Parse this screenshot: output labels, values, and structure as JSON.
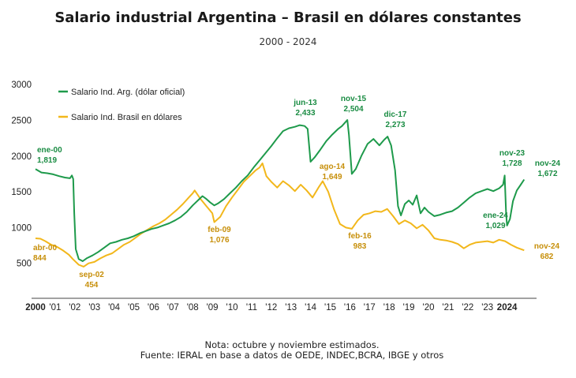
{
  "chart_data": {
    "type": "line",
    "title": "Salario industrial Argentina – Brasil en dólares constantes",
    "subtitle": "2000 - 2024",
    "xlabel": "",
    "ylabel": "",
    "ylim": [
      0,
      3000
    ],
    "yticks": [
      "3000",
      "2500",
      "2000",
      "1500",
      "1000",
      "500"
    ],
    "xticks": [
      {
        "label": "2000",
        "year": 2000,
        "bold": true
      },
      {
        "label": "'01",
        "year": 2001
      },
      {
        "label": "'02",
        "year": 2002
      },
      {
        "label": "'03",
        "year": 2003
      },
      {
        "label": "'04",
        "year": 2004
      },
      {
        "label": "'05",
        "year": 2005
      },
      {
        "label": "'06",
        "year": 2006
      },
      {
        "label": "'07",
        "year": 2007
      },
      {
        "label": "'08",
        "year": 2008
      },
      {
        "label": "'09",
        "year": 2009
      },
      {
        "label": "'10",
        "year": 2010
      },
      {
        "label": "'11",
        "year": 2011
      },
      {
        "label": "'12",
        "year": 2012
      },
      {
        "label": "'13",
        "year": 2013
      },
      {
        "label": "'14",
        "year": 2014
      },
      {
        "label": "'15",
        "year": 2015
      },
      {
        "label": "'16",
        "year": 2016
      },
      {
        "label": "'17",
        "year": 2017
      },
      {
        "label": "'18",
        "year": 2018
      },
      {
        "label": "'19",
        "year": 2019
      },
      {
        "label": "'20",
        "year": 2020
      },
      {
        "label": "'21",
        "year": 2021
      },
      {
        "label": "'22",
        "year": 2022
      },
      {
        "label": "'23",
        "year": 2023
      },
      {
        "label": "2024",
        "year": 2024,
        "bold": true
      }
    ],
    "grid": false,
    "legend_position": "top-left",
    "series": [
      {
        "name": "Salario Ind. Arg. (dólar oficial)",
        "color": "#1e9a4b",
        "points": [
          [
            2000.0,
            1819
          ],
          [
            2000.3,
            1770
          ],
          [
            2000.6,
            1760
          ],
          [
            2000.9,
            1745
          ],
          [
            2001.2,
            1720
          ],
          [
            2001.5,
            1700
          ],
          [
            2001.75,
            1690
          ],
          [
            2001.85,
            1730
          ],
          [
            2001.92,
            1680
          ],
          [
            2001.97,
            1200
          ],
          [
            2002.05,
            700
          ],
          [
            2002.2,
            560
          ],
          [
            2002.4,
            530
          ],
          [
            2002.6,
            570
          ],
          [
            2002.9,
            610
          ],
          [
            2003.2,
            660
          ],
          [
            2003.5,
            720
          ],
          [
            2003.8,
            780
          ],
          [
            2004.1,
            800
          ],
          [
            2004.4,
            830
          ],
          [
            2004.7,
            850
          ],
          [
            2005.0,
            880
          ],
          [
            2005.3,
            920
          ],
          [
            2005.6,
            950
          ],
          [
            2005.9,
            980
          ],
          [
            2006.2,
            1000
          ],
          [
            2006.5,
            1030
          ],
          [
            2006.8,
            1060
          ],
          [
            2007.1,
            1100
          ],
          [
            2007.4,
            1150
          ],
          [
            2007.7,
            1220
          ],
          [
            2008.0,
            1310
          ],
          [
            2008.3,
            1390
          ],
          [
            2008.5,
            1440
          ],
          [
            2008.7,
            1400
          ],
          [
            2008.9,
            1350
          ],
          [
            2009.1,
            1310
          ],
          [
            2009.3,
            1340
          ],
          [
            2009.6,
            1400
          ],
          [
            2009.9,
            1480
          ],
          [
            2010.2,
            1560
          ],
          [
            2010.5,
            1650
          ],
          [
            2010.8,
            1730
          ],
          [
            2011.1,
            1840
          ],
          [
            2011.4,
            1940
          ],
          [
            2011.7,
            2040
          ],
          [
            2012.0,
            2140
          ],
          [
            2012.3,
            2250
          ],
          [
            2012.6,
            2350
          ],
          [
            2012.9,
            2390
          ],
          [
            2013.2,
            2410
          ],
          [
            2013.45,
            2433
          ],
          [
            2013.7,
            2420
          ],
          [
            2013.85,
            2380
          ],
          [
            2014.0,
            1920
          ],
          [
            2014.2,
            1980
          ],
          [
            2014.5,
            2090
          ],
          [
            2014.8,
            2210
          ],
          [
            2015.1,
            2300
          ],
          [
            2015.4,
            2380
          ],
          [
            2015.6,
            2420
          ],
          [
            2015.87,
            2504
          ],
          [
            2015.95,
            2300
          ],
          [
            2016.1,
            1750
          ],
          [
            2016.3,
            1820
          ],
          [
            2016.6,
            2010
          ],
          [
            2016.9,
            2170
          ],
          [
            2017.2,
            2240
          ],
          [
            2017.5,
            2150
          ],
          [
            2017.75,
            2230
          ],
          [
            2017.92,
            2273
          ],
          [
            2018.1,
            2150
          ],
          [
            2018.3,
            1800
          ],
          [
            2018.45,
            1300
          ],
          [
            2018.6,
            1170
          ],
          [
            2018.8,
            1330
          ],
          [
            2019.0,
            1380
          ],
          [
            2019.2,
            1320
          ],
          [
            2019.4,
            1450
          ],
          [
            2019.6,
            1200
          ],
          [
            2019.8,
            1280
          ],
          [
            2020.0,
            1220
          ],
          [
            2020.3,
            1160
          ],
          [
            2020.6,
            1180
          ],
          [
            2020.9,
            1210
          ],
          [
            2021.2,
            1230
          ],
          [
            2021.5,
            1280
          ],
          [
            2021.8,
            1350
          ],
          [
            2022.1,
            1420
          ],
          [
            2022.4,
            1480
          ],
          [
            2022.7,
            1510
          ],
          [
            2023.0,
            1540
          ],
          [
            2023.3,
            1510
          ],
          [
            2023.6,
            1550
          ],
          [
            2023.8,
            1600
          ],
          [
            2023.88,
            1728
          ],
          [
            2023.95,
            1200
          ],
          [
            2024.0,
            1029
          ],
          [
            2024.15,
            1120
          ],
          [
            2024.3,
            1370
          ],
          [
            2024.5,
            1520
          ],
          [
            2024.7,
            1600
          ],
          [
            2024.87,
            1672
          ]
        ]
      },
      {
        "name": "Salario Ind. Brasil en dólares",
        "color": "#f2b71b",
        "points": [
          [
            2000.0,
            850
          ],
          [
            2000.25,
            844
          ],
          [
            2000.5,
            810
          ],
          [
            2000.8,
            760
          ],
          [
            2001.1,
            730
          ],
          [
            2001.4,
            680
          ],
          [
            2001.7,
            620
          ],
          [
            2001.9,
            560
          ],
          [
            2002.2,
            480
          ],
          [
            2002.45,
            454
          ],
          [
            2002.7,
            500
          ],
          [
            2003.0,
            520
          ],
          [
            2003.3,
            570
          ],
          [
            2003.6,
            610
          ],
          [
            2003.9,
            640
          ],
          [
            2004.2,
            700
          ],
          [
            2004.5,
            760
          ],
          [
            2004.8,
            800
          ],
          [
            2005.1,
            860
          ],
          [
            2005.4,
            920
          ],
          [
            2005.7,
            970
          ],
          [
            2006.0,
            1020
          ],
          [
            2006.3,
            1060
          ],
          [
            2006.6,
            1110
          ],
          [
            2006.9,
            1180
          ],
          [
            2007.2,
            1250
          ],
          [
            2007.5,
            1330
          ],
          [
            2007.8,
            1420
          ],
          [
            2008.0,
            1480
          ],
          [
            2008.1,
            1520
          ],
          [
            2008.4,
            1400
          ],
          [
            2008.7,
            1300
          ],
          [
            2009.0,
            1200
          ],
          [
            2009.1,
            1076
          ],
          [
            2009.4,
            1150
          ],
          [
            2009.7,
            1300
          ],
          [
            2010.0,
            1420
          ],
          [
            2010.3,
            1530
          ],
          [
            2010.6,
            1640
          ],
          [
            2010.9,
            1720
          ],
          [
            2011.2,
            1800
          ],
          [
            2011.4,
            1840
          ],
          [
            2011.55,
            1900
          ],
          [
            2011.75,
            1720
          ],
          [
            2012.0,
            1640
          ],
          [
            2012.3,
            1560
          ],
          [
            2012.6,
            1650
          ],
          [
            2012.9,
            1590
          ],
          [
            2013.2,
            1510
          ],
          [
            2013.5,
            1600
          ],
          [
            2013.8,
            1520
          ],
          [
            2014.1,
            1420
          ],
          [
            2014.4,
            1560
          ],
          [
            2014.62,
            1649
          ],
          [
            2014.9,
            1500
          ],
          [
            2015.2,
            1250
          ],
          [
            2015.5,
            1050
          ],
          [
            2015.8,
            1000
          ],
          [
            2016.1,
            983
          ],
          [
            2016.4,
            1100
          ],
          [
            2016.7,
            1180
          ],
          [
            2017.0,
            1200
          ],
          [
            2017.3,
            1230
          ],
          [
            2017.6,
            1220
          ],
          [
            2017.9,
            1260
          ],
          [
            2018.2,
            1160
          ],
          [
            2018.5,
            1050
          ],
          [
            2018.8,
            1100
          ],
          [
            2019.1,
            1060
          ],
          [
            2019.4,
            990
          ],
          [
            2019.7,
            1040
          ],
          [
            2020.0,
            960
          ],
          [
            2020.3,
            850
          ],
          [
            2020.6,
            830
          ],
          [
            2020.9,
            820
          ],
          [
            2021.2,
            800
          ],
          [
            2021.5,
            770
          ],
          [
            2021.8,
            710
          ],
          [
            2022.1,
            760
          ],
          [
            2022.4,
            790
          ],
          [
            2022.7,
            800
          ],
          [
            2023.0,
            810
          ],
          [
            2023.3,
            790
          ],
          [
            2023.6,
            830
          ],
          [
            2023.9,
            810
          ],
          [
            2024.2,
            760
          ],
          [
            2024.5,
            720
          ],
          [
            2024.87,
            682
          ]
        ]
      }
    ],
    "annotations": [
      {
        "series": 0,
        "date": "ene-00",
        "value": "1,819"
      },
      {
        "series": 1,
        "date": "abr-00",
        "value": "844"
      },
      {
        "series": 1,
        "date": "sep-02",
        "value": "454"
      },
      {
        "series": 1,
        "date": "feb-09",
        "value": "1,076"
      },
      {
        "series": 0,
        "date": "jun-13",
        "value": "2,433"
      },
      {
        "series": 1,
        "date": "ago-14",
        "value": "1,649"
      },
      {
        "series": 0,
        "date": "nov-15",
        "value": "2,504"
      },
      {
        "series": 1,
        "date": "feb-16",
        "value": "983"
      },
      {
        "series": 0,
        "date": "dic-17",
        "value": "2,273"
      },
      {
        "series": 0,
        "date": "nov-23",
        "value": "1,728"
      },
      {
        "series": 0,
        "date": "ene-24",
        "value": "1,029"
      },
      {
        "series": 0,
        "date": "nov-24",
        "value": "1,672"
      },
      {
        "series": 1,
        "date": "nov-24",
        "value": "682"
      }
    ]
  },
  "footer": {
    "note": "Nota: octubre y noviembre estimados.",
    "source": "Fuente: IERAL en base a datos de OEDE, INDEC,BCRA, IBGE y otros"
  }
}
